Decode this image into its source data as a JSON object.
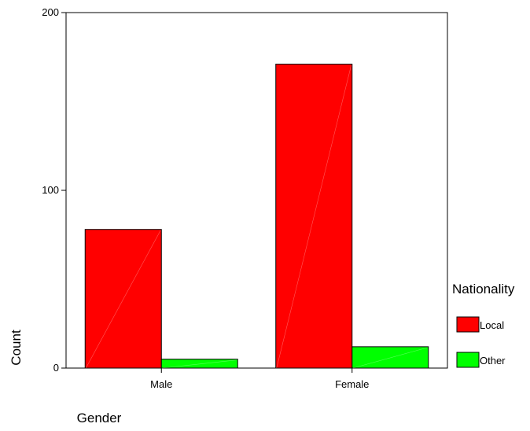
{
  "chart_data": {
    "type": "bar",
    "categories": [
      "Male",
      "Female"
    ],
    "series": [
      {
        "name": "Local",
        "values": [
          78,
          171
        ],
        "color": "#ff0000"
      },
      {
        "name": "Other",
        "values": [
          5,
          12
        ],
        "color": "#00ff00"
      }
    ],
    "xlabel": "Gender",
    "ylabel": "Count",
    "ylim": [
      0,
      200
    ],
    "yticks": [
      0,
      100,
      200
    ],
    "grid": false,
    "legend": {
      "title": "Nationality",
      "position": "right"
    }
  }
}
